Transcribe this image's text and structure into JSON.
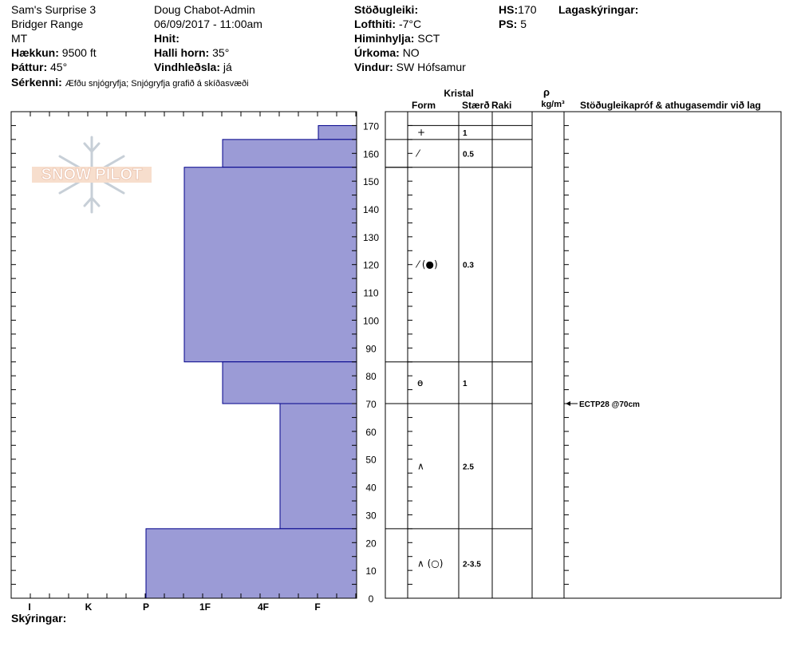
{
  "header": {
    "location": "Sam's Surprise 3",
    "range": "Bridger Range",
    "state": "MT",
    "elevation_label": "Hækkun:",
    "elevation_value": "9500 ft",
    "aspect_label": "Þáttur:",
    "aspect_value": "45°",
    "features_label": "Sérkenni:",
    "features_value": "Æfðu snjógryfja;  Snjógryfja grafið á skíðasvæði",
    "observer": "Doug Chabot-Admin",
    "datetime": "06/09/2017 - 11:00am",
    "coords_label": "Hnit:",
    "slope_label": "Halli horn:",
    "slope_value": "35°",
    "wind_loading_label": "Vindhleðsla:",
    "wind_loading_value": "já",
    "stability_label": "Stöðugleiki:",
    "air_temp_label": "Lofthiti:",
    "air_temp_value": "-7°C",
    "sky_label": "Himinhylja:",
    "sky_value": "SCT",
    "precip_label": "Úrkoma:",
    "precip_value": "NO",
    "wind_label": "Vindur:",
    "wind_value": "SW Hófsamur",
    "hs_label": "HS:",
    "hs_value": "170",
    "ps_label": "PS:",
    "ps_value": "5",
    "layer_notes_label": "Lagaskýringar:"
  },
  "columns": {
    "crystal": "Kristal",
    "form": "Form",
    "size": "Stærð",
    "moisture": "Raki",
    "rho": "ρ",
    "density_unit": "kg/m³",
    "tests": "Stöðugleikapróf & athugasemdir við lag"
  },
  "legend_label": "Skýringar:",
  "logo_text": "SNOW PILOT",
  "colors": {
    "layer_fill": "#9b9bd6",
    "layer_stroke": "#00008b"
  },
  "chart_data": {
    "type": "bar",
    "title": "",
    "y_axis": {
      "min": 0,
      "max": 175,
      "ticks": [
        0,
        10,
        20,
        30,
        40,
        50,
        60,
        70,
        80,
        90,
        100,
        110,
        120,
        130,
        140,
        150,
        160,
        170
      ]
    },
    "hardness_scale": [
      "I",
      "K",
      "P",
      "1F",
      "4F",
      "F"
    ],
    "layers": [
      {
        "top": 170,
        "bottom": 165,
        "hardness": "F",
        "form_symbol": "+",
        "size": "1"
      },
      {
        "top": 165,
        "bottom": 155,
        "hardness": "1F/4F",
        "form_symbol": "⁄",
        "size": "0.5"
      },
      {
        "top": 155,
        "bottom": 85,
        "hardness": "1F",
        "form_symbol": "⁄ (●)",
        "size": "0.3"
      },
      {
        "top": 85,
        "bottom": 70,
        "hardness": "1F/4F",
        "form_symbol": "ө",
        "size": "1"
      },
      {
        "top": 70,
        "bottom": 25,
        "hardness": "4F",
        "form_symbol": "∧",
        "size": "2.5"
      },
      {
        "top": 25,
        "bottom": 0,
        "hardness": "P",
        "form_symbol": "∧ (○)",
        "size": "2-3.5"
      }
    ],
    "tests": [
      {
        "depth": 70,
        "label": "ECTP28 @70cm"
      }
    ]
  }
}
